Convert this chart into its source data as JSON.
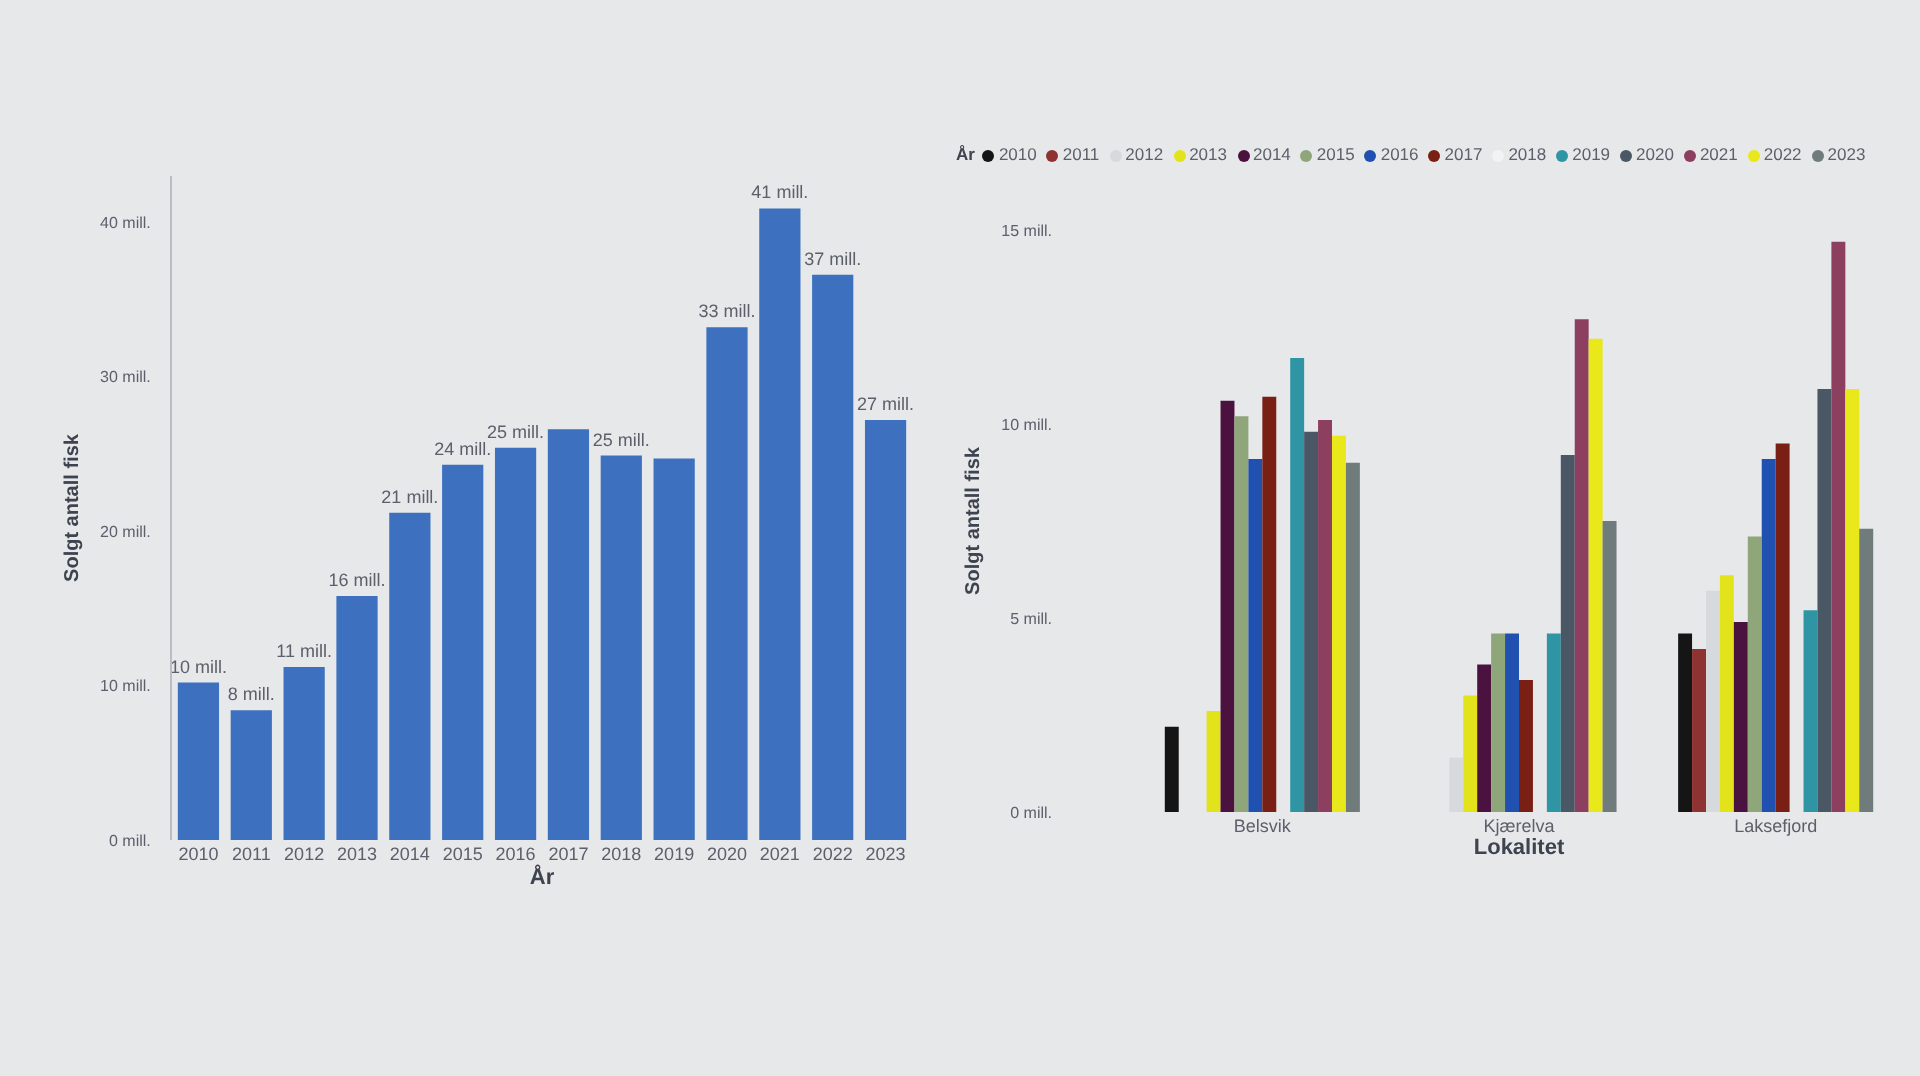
{
  "chart_data": [
    {
      "type": "bar",
      "categories": [
        "2010",
        "2011",
        "2012",
        "2013",
        "2014",
        "2015",
        "2016",
        "2017",
        "2018",
        "2019",
        "2020",
        "2021",
        "2022",
        "2023"
      ],
      "values": [
        10.2,
        8.4,
        11.2,
        15.8,
        21.2,
        24.3,
        25.4,
        26.6,
        24.9,
        24.7,
        33.2,
        40.9,
        36.6,
        27.2
      ],
      "color": "#3d71bf",
      "value_labels": [
        "10 mill.",
        "8 mill.",
        "11 mill.",
        "16 mill.",
        "21 mill.",
        "24 mill.",
        "25 mill.",
        null,
        "25 mill.",
        null,
        "33 mill.",
        "41 mill.",
        "37 mill.",
        "27 mill."
      ],
      "xlabel": "År",
      "ylabel": "Solgt antall fisk",
      "ylim": [
        0,
        43
      ],
      "yticks": [
        {
          "value": 0,
          "label": "0 mill."
        },
        {
          "value": 10,
          "label": "10 mill."
        },
        {
          "value": 20,
          "label": "20 mill."
        },
        {
          "value": 30,
          "label": "30 mill."
        },
        {
          "value": 40,
          "label": "40 mill."
        }
      ]
    },
    {
      "type": "bar",
      "categories": [
        "Belsvik",
        "Kjærelva",
        "Laksefjord"
      ],
      "xlabel": "Lokalitet",
      "ylabel": "Solgt antall fisk",
      "legend_title": "År",
      "legend": "top left",
      "ylim": [
        0,
        15
      ],
      "yticks": [
        {
          "value": 0,
          "label": "0 mill."
        },
        {
          "value": 5,
          "label": "5 mill."
        },
        {
          "value": 10,
          "label": "10 mill."
        },
        {
          "value": 15,
          "label": "15 mill."
        }
      ],
      "series": [
        {
          "name": "2010",
          "color": "#151515",
          "values": [
            2.2,
            null,
            4.6
          ]
        },
        {
          "name": "2011",
          "color": "#8f3232",
          "values": [
            null,
            null,
            4.2
          ]
        },
        {
          "name": "2012",
          "color": "#d6dadd",
          "values": [
            null,
            1.4,
            5.7
          ]
        },
        {
          "name": "2013",
          "color": "#e3e31c",
          "values": [
            2.6,
            3.0,
            6.1
          ]
        },
        {
          "name": "2014",
          "color": "#4b1240",
          "values": [
            10.6,
            3.8,
            4.9
          ]
        },
        {
          "name": "2015",
          "color": "#8fa57a",
          "values": [
            10.2,
            4.6,
            7.1
          ]
        },
        {
          "name": "2016",
          "color": "#2050b0",
          "values": [
            9.1,
            4.6,
            9.1
          ]
        },
        {
          "name": "2017",
          "color": "#7a1f14",
          "values": [
            10.7,
            3.4,
            9.5
          ]
        },
        {
          "name": "2018",
          "color": "#f3f3f3",
          "values": [
            null,
            null,
            null
          ]
        },
        {
          "name": "2019",
          "color": "#2f95a5",
          "values": [
            11.7,
            4.6,
            5.2
          ]
        },
        {
          "name": "2020",
          "color": "#4a5866",
          "values": [
            9.8,
            9.2,
            10.9
          ]
        },
        {
          "name": "2021",
          "color": "#8c3f5f",
          "values": [
            10.1,
            12.7,
            14.7
          ]
        },
        {
          "name": "2022",
          "color": "#e8e81a",
          "values": [
            9.7,
            12.2,
            10.9
          ]
        },
        {
          "name": "2023",
          "color": "#707b7c",
          "values": [
            9.0,
            7.5,
            7.3
          ]
        }
      ]
    }
  ]
}
